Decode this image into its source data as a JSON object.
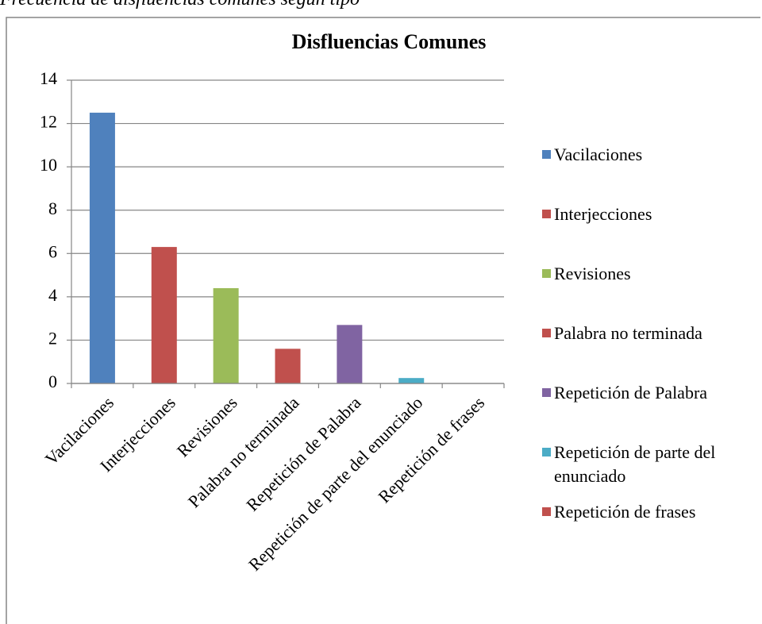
{
  "caption": "Frecuencia de disfluencias comunes según tipo",
  "chart_data": {
    "type": "bar",
    "title": "Disfluencias Comunes",
    "categories": [
      "Vacilaciones",
      "Interjecciones",
      "Revisiones",
      "Palabra no terminada",
      "Repetición de Palabra",
      "Repetición de parte del enunciado",
      "Repetición de frases"
    ],
    "values": [
      12.5,
      6.3,
      4.4,
      1.6,
      2.7,
      0.25,
      0
    ],
    "colors": [
      "#4f81bd",
      "#c0504d",
      "#9bbb59",
      "#c0504d",
      "#8064a2",
      "#4bacc6",
      "#c0504d"
    ],
    "ylim": [
      0,
      14
    ],
    "yticks": [
      0,
      2,
      4,
      6,
      8,
      10,
      12,
      14
    ],
    "grid": true,
    "legend": "right"
  }
}
